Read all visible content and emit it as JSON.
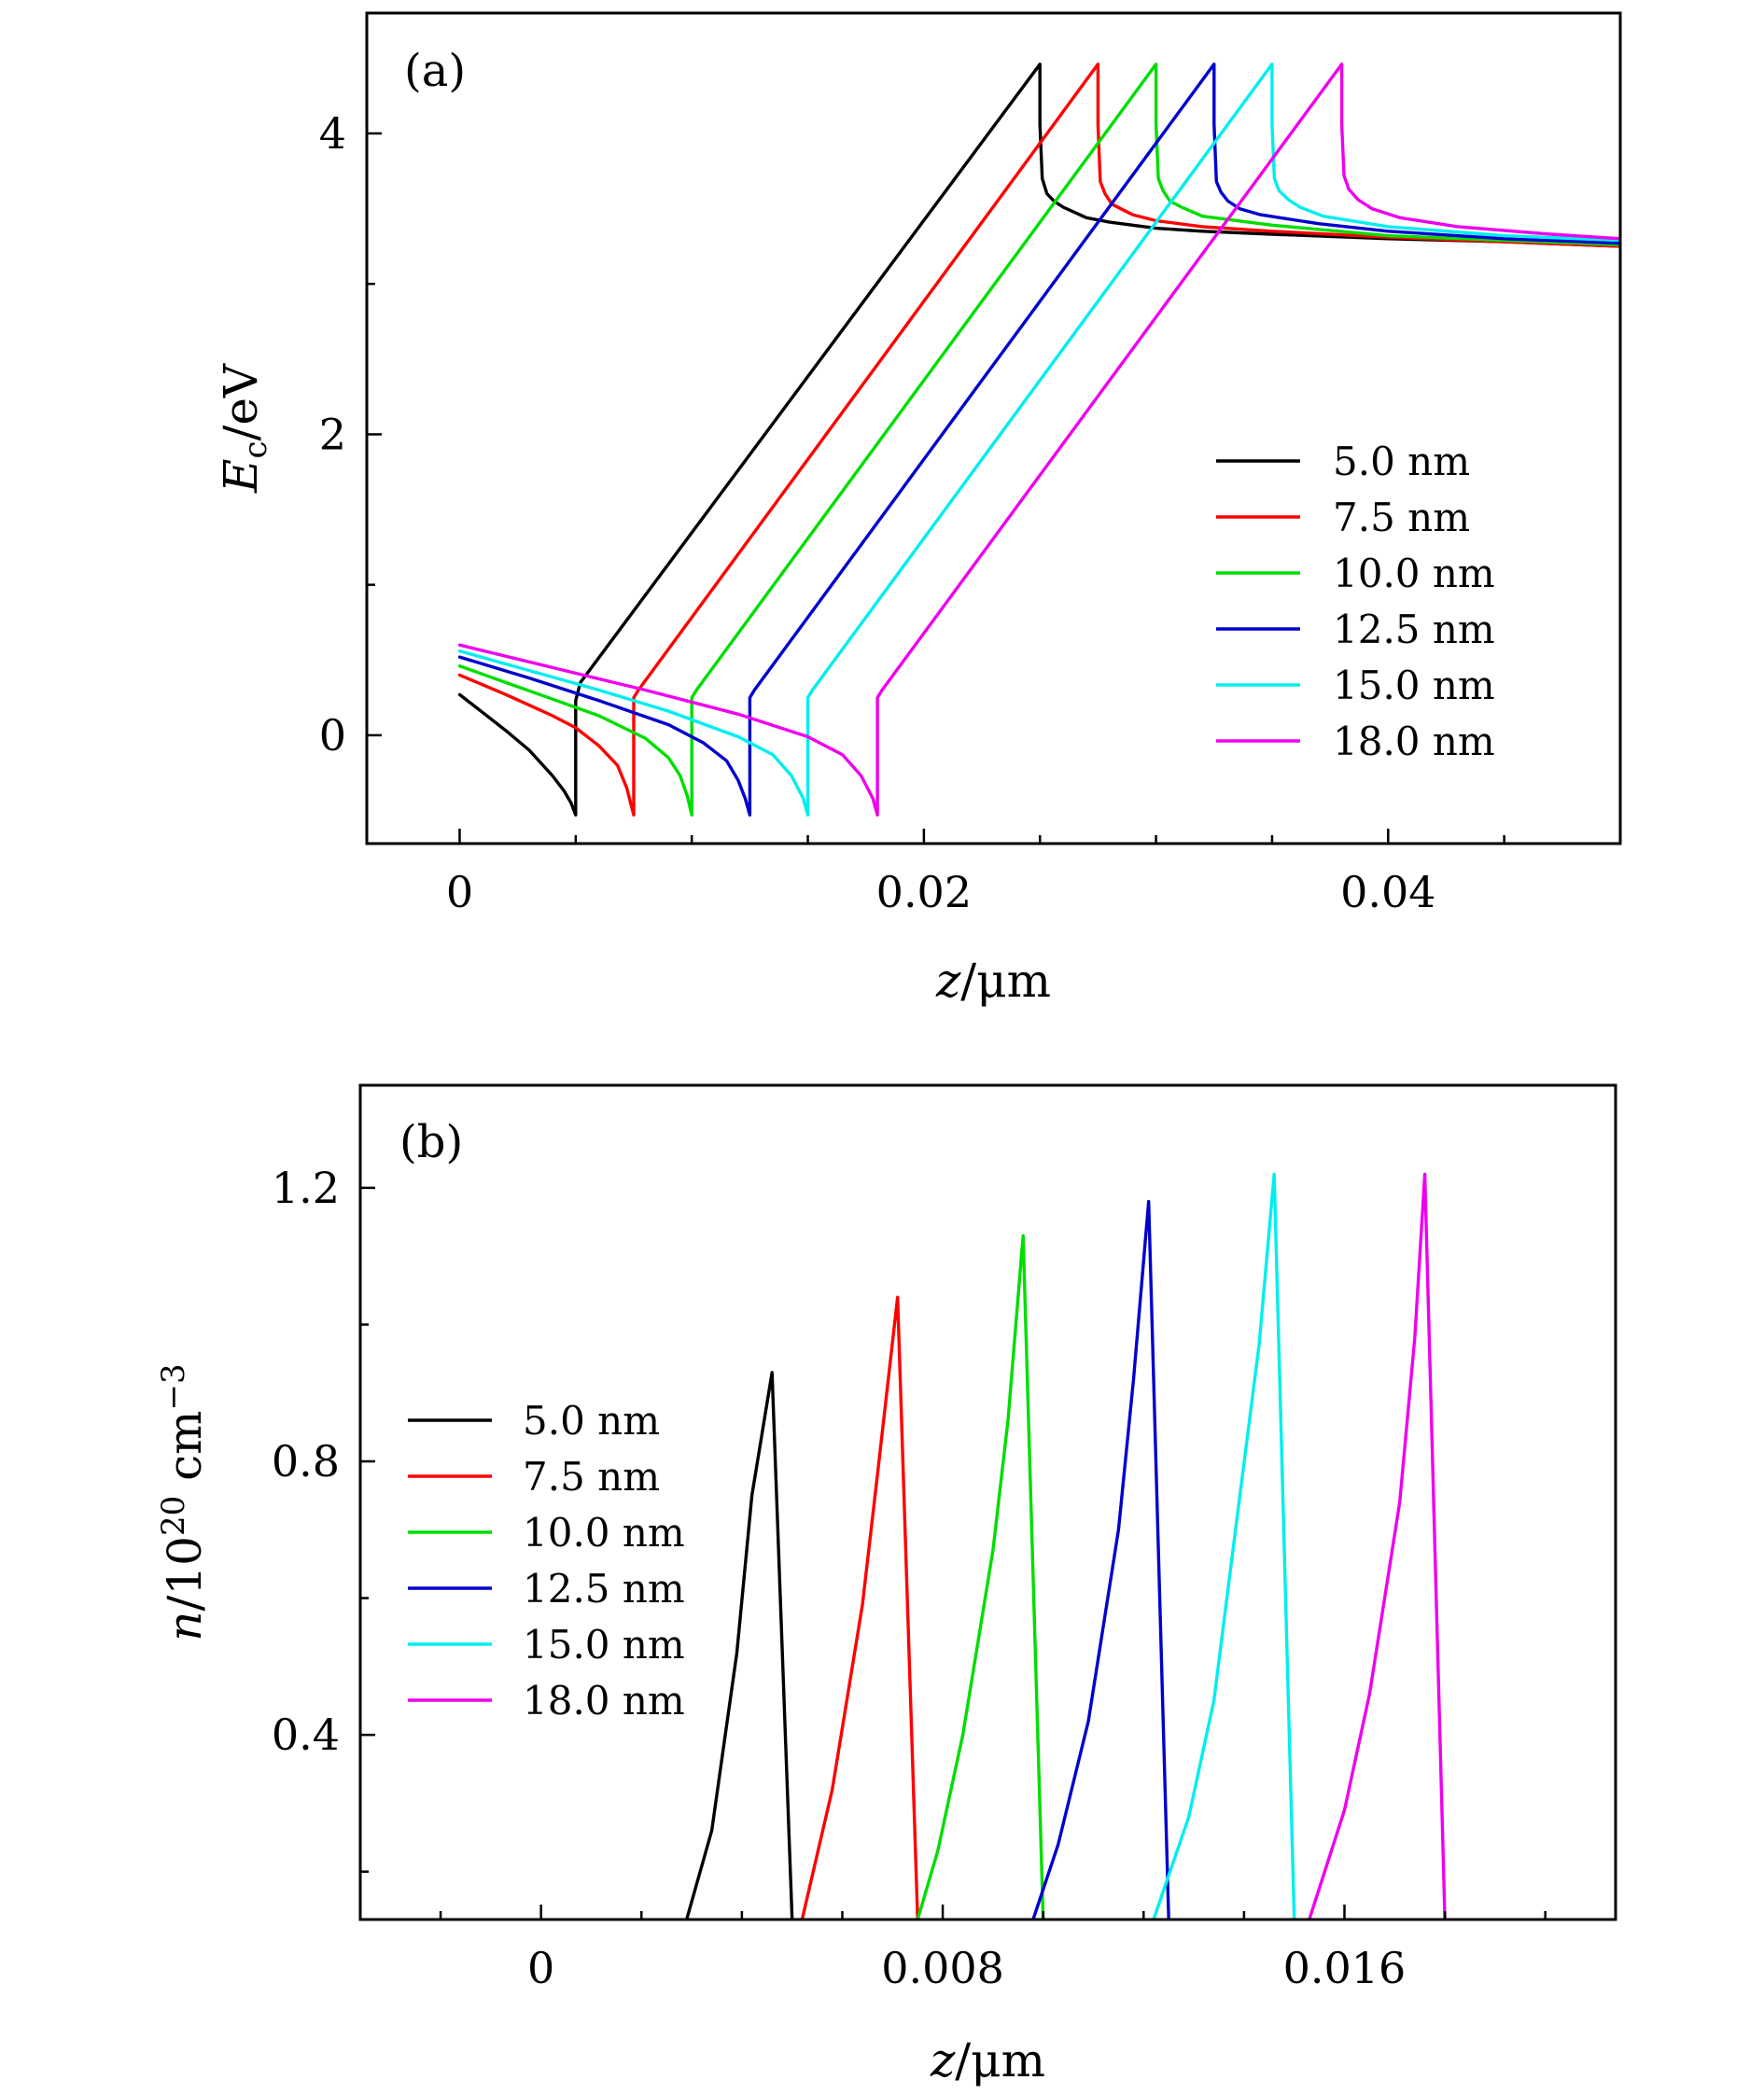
{
  "chart_data": [
    {
      "type": "line",
      "panel_label": "(a)",
      "xlabel": "z/μm",
      "ylabel": "E_c/eV",
      "xlim": [
        -0.004,
        0.05
      ],
      "ylim": [
        -0.72,
        4.8
      ],
      "x_ticks": [
        0,
        0.02,
        0.04
      ],
      "x_tick_labels": [
        "0",
        "0.02",
        "0.04"
      ],
      "y_ticks": [
        0,
        2,
        4
      ],
      "y_tick_labels": [
        "0",
        "2",
        "4"
      ],
      "legend_position": "right",
      "series": [
        {
          "name": "5.0 nm",
          "color": "#000000",
          "x": [
            0,
            0.001,
            0.002,
            0.003,
            0.004,
            0.0045,
            0.0048,
            0.005,
            0.005,
            0.0052,
            0.025,
            0.025,
            0.0251,
            0.0253,
            0.0256,
            0.026,
            0.027,
            0.028,
            0.029,
            0.03,
            0.032,
            0.035,
            0.04,
            0.045,
            0.05
          ],
          "y": [
            0.27,
            0.15,
            0.03,
            -0.1,
            -0.27,
            -0.37,
            -0.45,
            -0.53,
            0.23,
            0.35,
            4.46,
            4.06,
            3.7,
            3.6,
            3.55,
            3.51,
            3.44,
            3.41,
            3.39,
            3.37,
            3.35,
            3.33,
            3.3,
            3.28,
            3.25
          ]
        },
        {
          "name": "7.5 nm",
          "color": "#ff0000",
          "x": [
            0,
            0.002,
            0.004,
            0.005,
            0.006,
            0.0068,
            0.0072,
            0.0075,
            0.0075,
            0.0077,
            0.0275,
            0.0275,
            0.0276,
            0.0278,
            0.0281,
            0.0286,
            0.029,
            0.03,
            0.032,
            0.035,
            0.04,
            0.045,
            0.05
          ],
          "y": [
            0.4,
            0.27,
            0.13,
            0.05,
            -0.07,
            -0.2,
            -0.35,
            -0.53,
            0.25,
            0.3,
            4.46,
            4.06,
            3.68,
            3.6,
            3.53,
            3.49,
            3.46,
            3.42,
            3.38,
            3.35,
            3.31,
            3.28,
            3.25
          ]
        },
        {
          "name": "10.0 nm",
          "color": "#00dd00",
          "x": [
            0,
            0.002,
            0.004,
            0.006,
            0.008,
            0.009,
            0.0095,
            0.0098,
            0.01,
            0.01,
            0.0102,
            0.03,
            0.03,
            0.0301,
            0.0303,
            0.0306,
            0.0311,
            0.032,
            0.035,
            0.04,
            0.045,
            0.05
          ],
          "y": [
            0.46,
            0.35,
            0.24,
            0.13,
            -0.02,
            -0.15,
            -0.27,
            -0.4,
            -0.53,
            0.25,
            0.3,
            4.46,
            4.06,
            3.7,
            3.62,
            3.55,
            3.51,
            3.45,
            3.39,
            3.32,
            3.29,
            3.26
          ]
        },
        {
          "name": "12.5 nm",
          "color": "#0000cc",
          "x": [
            0,
            0.003,
            0.006,
            0.009,
            0.0105,
            0.0115,
            0.012,
            0.0123,
            0.0125,
            0.0125,
            0.0127,
            0.0325,
            0.0325,
            0.0326,
            0.0328,
            0.0331,
            0.0336,
            0.0345,
            0.037,
            0.04,
            0.045,
            0.05
          ],
          "y": [
            0.52,
            0.38,
            0.23,
            0.07,
            -0.05,
            -0.17,
            -0.3,
            -0.42,
            -0.53,
            0.25,
            0.3,
            4.46,
            4.06,
            3.68,
            3.61,
            3.55,
            3.5,
            3.46,
            3.4,
            3.35,
            3.3,
            3.27
          ]
        },
        {
          "name": "15.0 nm",
          "color": "#00eeee",
          "x": [
            0,
            0.003,
            0.006,
            0.009,
            0.012,
            0.0135,
            0.0143,
            0.0148,
            0.015,
            0.015,
            0.0152,
            0.035,
            0.035,
            0.0351,
            0.0353,
            0.0357,
            0.0362,
            0.0372,
            0.04,
            0.045,
            0.05
          ],
          "y": [
            0.56,
            0.43,
            0.3,
            0.16,
            -0.01,
            -0.13,
            -0.27,
            -0.42,
            -0.53,
            0.25,
            0.3,
            4.46,
            4.06,
            3.7,
            3.62,
            3.56,
            3.51,
            3.45,
            3.38,
            3.32,
            3.29
          ]
        },
        {
          "name": "18.0 nm",
          "color": "#ee00ee",
          "x": [
            0,
            0.004,
            0.008,
            0.012,
            0.015,
            0.0165,
            0.0173,
            0.0178,
            0.018,
            0.018,
            0.0182,
            0.038,
            0.038,
            0.0381,
            0.0383,
            0.0387,
            0.0393,
            0.0405,
            0.043,
            0.047,
            0.05
          ],
          "y": [
            0.6,
            0.45,
            0.3,
            0.14,
            -0.01,
            -0.13,
            -0.27,
            -0.42,
            -0.53,
            0.25,
            0.3,
            4.46,
            4.06,
            3.72,
            3.63,
            3.56,
            3.5,
            3.44,
            3.38,
            3.33,
            3.3
          ]
        }
      ]
    },
    {
      "type": "line",
      "panel_label": "(b)",
      "xlabel": "z/μm",
      "ylabel": "n/10^20 cm^−3",
      "xlim": [
        -0.0036,
        0.0214
      ],
      "ylim": [
        0.13,
        1.35
      ],
      "x_ticks": [
        0,
        0.008,
        0.016
      ],
      "x_tick_labels": [
        "0",
        "0.008",
        "0.016"
      ],
      "y_ticks": [
        0.4,
        0.8,
        1.2
      ],
      "y_tick_labels": [
        "0.4",
        "0.8",
        "1.2"
      ],
      "legend_position": "left",
      "series": [
        {
          "name": "5.0 nm",
          "color": "#000000",
          "x": [
            0.0029,
            0.0034,
            0.0039,
            0.0042,
            0.0046,
            0.005
          ],
          "y": [
            0.13,
            0.26,
            0.52,
            0.75,
            0.93,
            0.13
          ]
        },
        {
          "name": "7.5 nm",
          "color": "#ff0000",
          "x": [
            0.0052,
            0.0058,
            0.0064,
            0.0067,
            0.0071,
            0.0075
          ],
          "y": [
            0.13,
            0.32,
            0.59,
            0.78,
            1.04,
            0.13
          ]
        },
        {
          "name": "10.0 nm",
          "color": "#00dd00",
          "x": [
            0.0075,
            0.0079,
            0.0084,
            0.009,
            0.0093,
            0.0096,
            0.01
          ],
          "y": [
            0.13,
            0.23,
            0.4,
            0.67,
            0.86,
            1.13,
            0.13
          ]
        },
        {
          "name": "12.5 nm",
          "color": "#0000cc",
          "x": [
            0.0098,
            0.0103,
            0.0109,
            0.0115,
            0.0118,
            0.0121,
            0.0125
          ],
          "y": [
            0.13,
            0.24,
            0.42,
            0.7,
            0.92,
            1.18,
            0.13
          ]
        },
        {
          "name": "15.0 nm",
          "color": "#00eeee",
          "x": [
            0.0122,
            0.0129,
            0.0134,
            0.0139,
            0.0143,
            0.0146,
            0.015
          ],
          "y": [
            0.13,
            0.28,
            0.45,
            0.74,
            0.97,
            1.22,
            0.13
          ]
        },
        {
          "name": "18.0 nm",
          "color": "#ee00ee",
          "x": [
            0.0153,
            0.016,
            0.0165,
            0.0171,
            0.0174,
            0.0176,
            0.018
          ],
          "y": [
            0.13,
            0.29,
            0.46,
            0.74,
            0.98,
            1.22,
            0.13
          ]
        }
      ]
    }
  ]
}
